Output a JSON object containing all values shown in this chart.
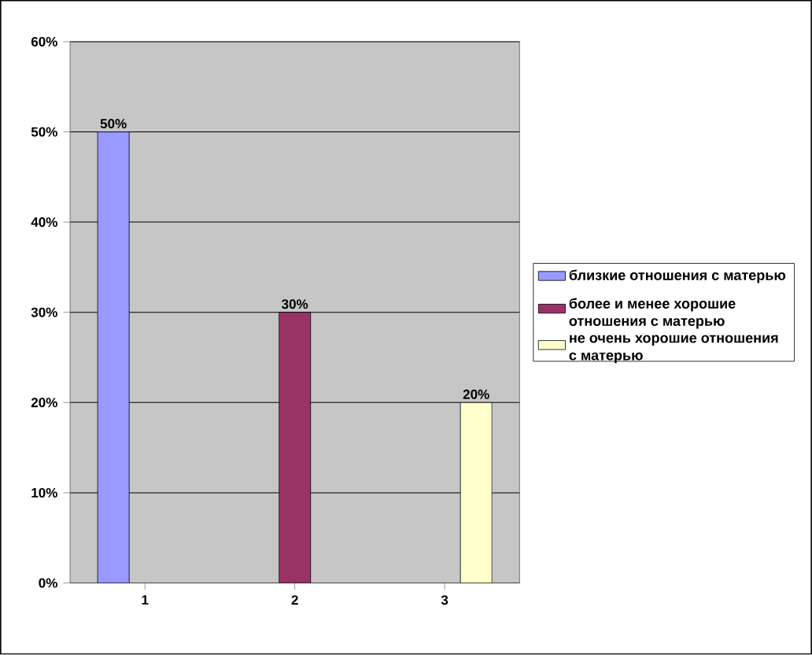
{
  "chart_data": {
    "type": "bar",
    "categories": [
      "1",
      "2",
      "3"
    ],
    "series": [
      {
        "name": "близкие отношения с матерью",
        "color": "#9999ff",
        "values": [
          50,
          null,
          null
        ],
        "value_labels": [
          "50%",
          null,
          null
        ]
      },
      {
        "name": "более и менее хорошие отношения с матерью",
        "color": "#993366",
        "values": [
          null,
          30,
          null
        ],
        "value_labels": [
          null,
          "30%",
          null
        ]
      },
      {
        "name": "не очень хорошие отношения с матерью",
        "color": "#ffffcc",
        "values": [
          null,
          null,
          20
        ],
        "value_labels": [
          null,
          null,
          "20%"
        ]
      }
    ],
    "ylim": [
      0,
      60
    ],
    "yticks": [
      {
        "value": 0,
        "label": "0%"
      },
      {
        "value": 10,
        "label": "10%"
      },
      {
        "value": 20,
        "label": "20%"
      },
      {
        "value": 30,
        "label": "30%"
      },
      {
        "value": 40,
        "label": "40%"
      },
      {
        "value": 50,
        "label": "50%"
      },
      {
        "value": 60,
        "label": "60%"
      }
    ],
    "grid": "y",
    "legend": "right"
  }
}
